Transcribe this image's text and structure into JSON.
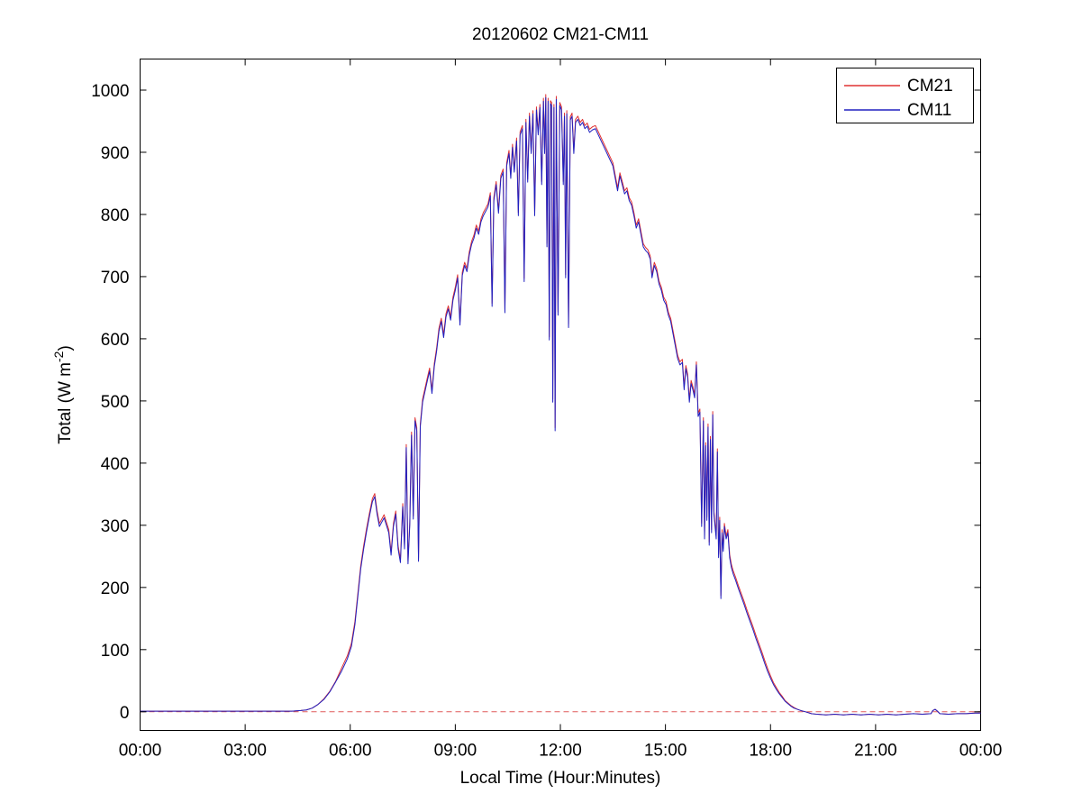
{
  "chart_data": {
    "type": "line",
    "title": "20120602 CM21-CM11",
    "xlabel": "Local Time (Hour:Minutes)",
    "ylabel": "Total (W m^-2)",
    "ylabel_parts": {
      "main": "Total (W m",
      "sup": "-2",
      "close": ")"
    },
    "x_unit": "minutes_since_midnight",
    "xlim": [
      0,
      1440
    ],
    "ylim": [
      -30,
      1050
    ],
    "grid": false,
    "background": "#ffffff",
    "axis_color": "#000000",
    "xticks": [
      {
        "m": 0,
        "label": "00:00"
      },
      {
        "m": 180,
        "label": "03:00"
      },
      {
        "m": 360,
        "label": "06:00"
      },
      {
        "m": 540,
        "label": "09:00"
      },
      {
        "m": 720,
        "label": "12:00"
      },
      {
        "m": 900,
        "label": "15:00"
      },
      {
        "m": 1080,
        "label": "18:00"
      },
      {
        "m": 1260,
        "label": "21:00"
      },
      {
        "m": 1440,
        "label": "00:00"
      }
    ],
    "yticks": [
      0,
      100,
      200,
      300,
      400,
      500,
      600,
      700,
      800,
      900,
      1000
    ],
    "legend": {
      "position": "top-right",
      "entries": [
        {
          "label": "CM21",
          "color": "#e03232"
        },
        {
          "label": "CM11",
          "color": "#2020c0"
        }
      ]
    },
    "zero_line": {
      "value": 0,
      "style": "dashed",
      "color": "#e05a5a"
    },
    "series": [
      {
        "name": "CM21",
        "color": "#e03232"
      },
      {
        "name": "CM11",
        "color": "#2020c0"
      }
    ],
    "points_format": [
      "minutes",
      "CM21",
      "CM11"
    ],
    "points": [
      [
        0,
        1,
        1
      ],
      [
        30,
        1,
        1
      ],
      [
        60,
        1,
        1
      ],
      [
        90,
        1,
        1
      ],
      [
        120,
        1,
        1
      ],
      [
        150,
        1,
        1
      ],
      [
        180,
        1,
        1
      ],
      [
        210,
        1,
        1
      ],
      [
        240,
        1,
        1
      ],
      [
        260,
        1,
        1
      ],
      [
        275,
        2,
        2
      ],
      [
        285,
        3,
        3
      ],
      [
        295,
        6,
        6
      ],
      [
        305,
        12,
        12
      ],
      [
        315,
        21,
        20
      ],
      [
        325,
        33,
        32
      ],
      [
        335,
        49,
        48
      ],
      [
        345,
        70,
        65
      ],
      [
        355,
        90,
        85
      ],
      [
        362,
        110,
        105
      ],
      [
        368,
        145,
        140
      ],
      [
        373,
        190,
        185
      ],
      [
        378,
        235,
        230
      ],
      [
        383,
        267,
        262
      ],
      [
        388,
        295,
        290
      ],
      [
        393,
        320,
        315
      ],
      [
        398,
        343,
        338
      ],
      [
        402,
        351,
        346
      ],
      [
        406,
        323,
        318
      ],
      [
        410,
        303,
        298
      ],
      [
        414,
        310,
        305
      ],
      [
        418,
        317,
        312
      ],
      [
        422,
        305,
        300
      ],
      [
        426,
        293,
        288
      ],
      [
        430,
        257,
        252
      ],
      [
        434,
        303,
        298
      ],
      [
        438,
        323,
        318
      ],
      [
        442,
        267,
        262
      ],
      [
        446,
        245,
        240
      ],
      [
        450,
        335,
        330
      ],
      [
        453,
        267,
        262
      ],
      [
        456,
        430,
        425
      ],
      [
        459,
        243,
        238
      ],
      [
        462,
        305,
        300
      ],
      [
        465,
        450,
        445
      ],
      [
        468,
        315,
        310
      ],
      [
        471,
        473,
        468
      ],
      [
        474,
        457,
        452
      ],
      [
        477,
        247,
        242
      ],
      [
        480,
        463,
        458
      ],
      [
        484,
        503,
        498
      ],
      [
        488,
        520,
        515
      ],
      [
        492,
        537,
        532
      ],
      [
        496,
        553,
        548
      ],
      [
        500,
        517,
        512
      ],
      [
        504,
        560,
        555
      ],
      [
        508,
        585,
        580
      ],
      [
        512,
        617,
        612
      ],
      [
        516,
        633,
        628
      ],
      [
        520,
        607,
        602
      ],
      [
        524,
        640,
        635
      ],
      [
        528,
        653,
        648
      ],
      [
        532,
        635,
        630
      ],
      [
        536,
        667,
        662
      ],
      [
        540,
        683,
        678
      ],
      [
        544,
        703,
        698
      ],
      [
        548,
        627,
        622
      ],
      [
        552,
        707,
        702
      ],
      [
        556,
        723,
        718
      ],
      [
        560,
        713,
        708
      ],
      [
        564,
        740,
        735
      ],
      [
        568,
        757,
        752
      ],
      [
        572,
        767,
        762
      ],
      [
        576,
        783,
        778
      ],
      [
        580,
        773,
        768
      ],
      [
        584,
        793,
        788
      ],
      [
        588,
        803,
        798
      ],
      [
        592,
        810,
        805
      ],
      [
        596,
        817,
        812
      ],
      [
        600,
        835,
        830
      ],
      [
        603,
        657,
        652
      ],
      [
        606,
        827,
        822
      ],
      [
        610,
        853,
        848
      ],
      [
        614,
        807,
        802
      ],
      [
        618,
        863,
        858
      ],
      [
        622,
        873,
        868
      ],
      [
        625,
        647,
        642
      ],
      [
        628,
        883,
        878
      ],
      [
        632,
        903,
        898
      ],
      [
        635,
        863,
        858
      ],
      [
        638,
        913,
        908
      ],
      [
        641,
        873,
        868
      ],
      [
        645,
        923,
        918
      ],
      [
        648,
        803,
        798
      ],
      [
        651,
        933,
        928
      ],
      [
        655,
        943,
        938
      ],
      [
        658,
        697,
        692
      ],
      [
        661,
        953,
        948
      ],
      [
        664,
        857,
        852
      ],
      [
        667,
        963,
        958
      ],
      [
        670,
        903,
        898
      ],
      [
        673,
        967,
        962
      ],
      [
        676,
        803,
        798
      ],
      [
        679,
        973,
        968
      ],
      [
        682,
        933,
        928
      ],
      [
        685,
        977,
        972
      ],
      [
        688,
        853,
        848
      ],
      [
        691,
        987,
        982
      ],
      [
        693,
        903,
        898
      ],
      [
        695,
        993,
        988
      ],
      [
        697,
        753,
        748
      ],
      [
        699,
        987,
        982
      ],
      [
        701,
        603,
        598
      ],
      [
        703,
        983,
        978
      ],
      [
        705,
        980,
        975
      ],
      [
        707,
        503,
        498
      ],
      [
        709,
        977,
        972
      ],
      [
        711,
        457,
        452
      ],
      [
        713,
        990,
        985
      ],
      [
        716,
        643,
        638
      ],
      [
        719,
        980,
        975
      ],
      [
        722,
        973,
        968
      ],
      [
        725,
        853,
        848
      ],
      [
        727,
        963,
        958
      ],
      [
        729,
        703,
        698
      ],
      [
        731,
        967,
        962
      ],
      [
        734,
        623,
        618
      ],
      [
        737,
        957,
        952
      ],
      [
        740,
        963,
        958
      ],
      [
        743,
        903,
        898
      ],
      [
        746,
        953,
        948
      ],
      [
        750,
        958,
        953
      ],
      [
        754,
        948,
        943
      ],
      [
        758,
        953,
        948
      ],
      [
        762,
        943,
        938
      ],
      [
        766,
        947,
        942
      ],
      [
        770,
        937,
        932
      ],
      [
        775,
        941,
        936
      ],
      [
        780,
        943,
        938
      ],
      [
        785,
        933,
        928
      ],
      [
        790,
        923,
        918
      ],
      [
        795,
        913,
        908
      ],
      [
        800,
        903,
        898
      ],
      [
        805,
        893,
        888
      ],
      [
        810,
        883,
        878
      ],
      [
        814,
        863,
        858
      ],
      [
        818,
        843,
        838
      ],
      [
        822,
        867,
        862
      ],
      [
        826,
        853,
        848
      ],
      [
        830,
        838,
        833
      ],
      [
        834,
        843,
        838
      ],
      [
        838,
        827,
        822
      ],
      [
        842,
        820,
        815
      ],
      [
        846,
        803,
        798
      ],
      [
        850,
        783,
        778
      ],
      [
        854,
        793,
        788
      ],
      [
        858,
        773,
        768
      ],
      [
        862,
        753,
        748
      ],
      [
        866,
        747,
        742
      ],
      [
        870,
        743,
        738
      ],
      [
        874,
        733,
        728
      ],
      [
        877,
        703,
        698
      ],
      [
        881,
        723,
        718
      ],
      [
        885,
        713,
        708
      ],
      [
        889,
        693,
        688
      ],
      [
        893,
        683,
        678
      ],
      [
        897,
        667,
        662
      ],
      [
        901,
        660,
        655
      ],
      [
        905,
        643,
        638
      ],
      [
        909,
        633,
        628
      ],
      [
        913,
        613,
        608
      ],
      [
        917,
        593,
        588
      ],
      [
        921,
        573,
        568
      ],
      [
        925,
        563,
        558
      ],
      [
        929,
        567,
        562
      ],
      [
        932,
        523,
        518
      ],
      [
        935,
        557,
        552
      ],
      [
        938,
        543,
        538
      ],
      [
        941,
        503,
        498
      ],
      [
        944,
        533,
        528
      ],
      [
        947,
        523,
        518
      ],
      [
        950,
        510,
        505
      ],
      [
        953,
        563,
        558
      ],
      [
        956,
        480,
        475
      ],
      [
        959,
        487,
        482
      ],
      [
        962,
        303,
        298
      ],
      [
        965,
        473,
        468
      ],
      [
        967,
        283,
        278
      ],
      [
        969,
        433,
        428
      ],
      [
        971,
        313,
        308
      ],
      [
        973,
        463,
        458
      ],
      [
        975,
        273,
        268
      ],
      [
        977,
        443,
        438
      ],
      [
        979,
        293,
        288
      ],
      [
        981,
        483,
        478
      ],
      [
        983,
        323,
        318
      ],
      [
        985,
        303,
        298
      ],
      [
        987,
        283,
        278
      ],
      [
        989,
        423,
        418
      ],
      [
        991,
        253,
        248
      ],
      [
        993,
        313,
        308
      ],
      [
        995,
        187,
        182
      ],
      [
        997,
        293,
        288
      ],
      [
        999,
        263,
        258
      ],
      [
        1001,
        303,
        298
      ],
      [
        1004,
        283,
        278
      ],
      [
        1007,
        293,
        288
      ],
      [
        1010,
        253,
        248
      ],
      [
        1013,
        237,
        232
      ],
      [
        1016,
        227,
        222
      ],
      [
        1020,
        217,
        212
      ],
      [
        1025,
        203,
        198
      ],
      [
        1030,
        190,
        185
      ],
      [
        1035,
        177,
        172
      ],
      [
        1040,
        163,
        158
      ],
      [
        1045,
        150,
        145
      ],
      [
        1050,
        137,
        132
      ],
      [
        1055,
        123,
        118
      ],
      [
        1060,
        110,
        105
      ],
      [
        1065,
        97,
        92
      ],
      [
        1070,
        83,
        78
      ],
      [
        1075,
        70,
        65
      ],
      [
        1080,
        58,
        54
      ],
      [
        1085,
        47,
        44
      ],
      [
        1090,
        39,
        36
      ],
      [
        1095,
        31,
        29
      ],
      [
        1100,
        25,
        23
      ],
      [
        1105,
        18,
        17
      ],
      [
        1110,
        14,
        13
      ],
      [
        1115,
        10,
        9
      ],
      [
        1120,
        7,
        6
      ],
      [
        1126,
        4,
        4
      ],
      [
        1132,
        2,
        2
      ],
      [
        1140,
        0,
        0
      ],
      [
        1150,
        -3,
        -3
      ],
      [
        1160,
        -4,
        -4
      ],
      [
        1175,
        -5,
        -5
      ],
      [
        1190,
        -4,
        -4
      ],
      [
        1205,
        -5,
        -5
      ],
      [
        1220,
        -4,
        -4
      ],
      [
        1235,
        -5,
        -5
      ],
      [
        1250,
        -4,
        -4
      ],
      [
        1265,
        -5,
        -5
      ],
      [
        1280,
        -4,
        -4
      ],
      [
        1295,
        -5,
        -5
      ],
      [
        1310,
        -4,
        -4
      ],
      [
        1325,
        -3,
        -3
      ],
      [
        1340,
        -4,
        -4
      ],
      [
        1355,
        -3,
        -3
      ],
      [
        1358,
        2,
        2
      ],
      [
        1362,
        4,
        4
      ],
      [
        1366,
        1,
        1
      ],
      [
        1370,
        -3,
        -3
      ],
      [
        1385,
        -4,
        -4
      ],
      [
        1400,
        -3,
        -3
      ],
      [
        1415,
        -3,
        -3
      ],
      [
        1430,
        -2,
        -2
      ],
      [
        1440,
        -2,
        -2
      ]
    ]
  }
}
